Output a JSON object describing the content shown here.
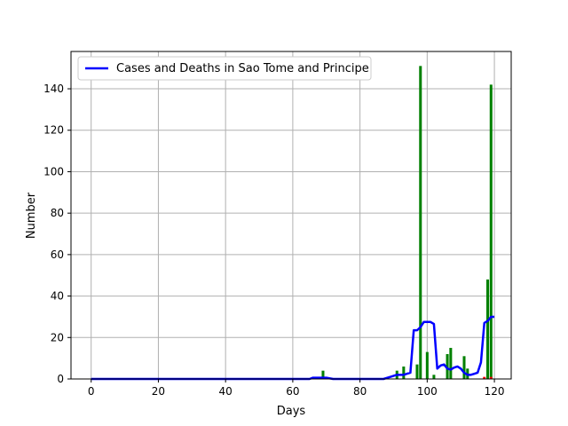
{
  "chart_data": {
    "type": "bar",
    "title": "",
    "xlabel": "Days",
    "ylabel": "Number",
    "xlim": [
      -6,
      125
    ],
    "ylim": [
      0,
      158
    ],
    "xticks": [
      0,
      20,
      40,
      60,
      80,
      100,
      120
    ],
    "yticks": [
      0,
      20,
      40,
      60,
      80,
      100,
      120,
      140
    ],
    "grid": true,
    "legend": {
      "placement": "top-left",
      "entries": [
        "Cases and Deaths in Sao Tome and Principe"
      ]
    },
    "colors": {
      "cases_bars": "#008000",
      "deaths_bars": "#ff0000",
      "line": "#0000ff",
      "grid": "#b0b0b0"
    },
    "series": [
      {
        "type": "bar",
        "color": "#008000",
        "points": [
          [
            69,
            4
          ],
          [
            91,
            4
          ],
          [
            93,
            6
          ],
          [
            97,
            7
          ],
          [
            98,
            151
          ],
          [
            100,
            13
          ],
          [
            102,
            2
          ],
          [
            106,
            12
          ],
          [
            107,
            15
          ],
          [
            111,
            11
          ],
          [
            112,
            5
          ],
          [
            118,
            48
          ],
          [
            119,
            142
          ]
        ]
      },
      {
        "type": "bar",
        "color": "#ff0000",
        "points": [
          [
            117,
            1
          ],
          [
            119,
            1
          ]
        ]
      },
      {
        "name": "Cases and Deaths in Sao Tome and Principe",
        "type": "line",
        "color": "#0000ff",
        "points": [
          [
            0,
            0
          ],
          [
            65,
            0
          ],
          [
            66,
            0.6
          ],
          [
            70,
            0.6
          ],
          [
            72,
            0
          ],
          [
            87,
            0
          ],
          [
            89,
            1
          ],
          [
            91,
            2
          ],
          [
            93,
            2
          ],
          [
            95,
            3
          ],
          [
            96,
            23.5
          ],
          [
            97,
            23.5
          ],
          [
            98,
            25
          ],
          [
            99,
            27.5
          ],
          [
            100,
            27.5
          ],
          [
            101,
            27.5
          ],
          [
            102,
            26.5
          ],
          [
            103,
            5
          ],
          [
            104,
            6.5
          ],
          [
            105,
            7
          ],
          [
            106,
            5
          ],
          [
            107,
            4.5
          ],
          [
            108,
            5.5
          ],
          [
            109,
            6
          ],
          [
            110,
            5
          ],
          [
            111,
            3
          ],
          [
            112,
            2
          ],
          [
            113,
            2
          ],
          [
            114,
            2.5
          ],
          [
            115,
            3
          ],
          [
            116,
            8
          ],
          [
            117,
            27
          ],
          [
            118,
            28
          ],
          [
            119,
            30
          ],
          [
            120,
            30
          ]
        ]
      }
    ]
  }
}
